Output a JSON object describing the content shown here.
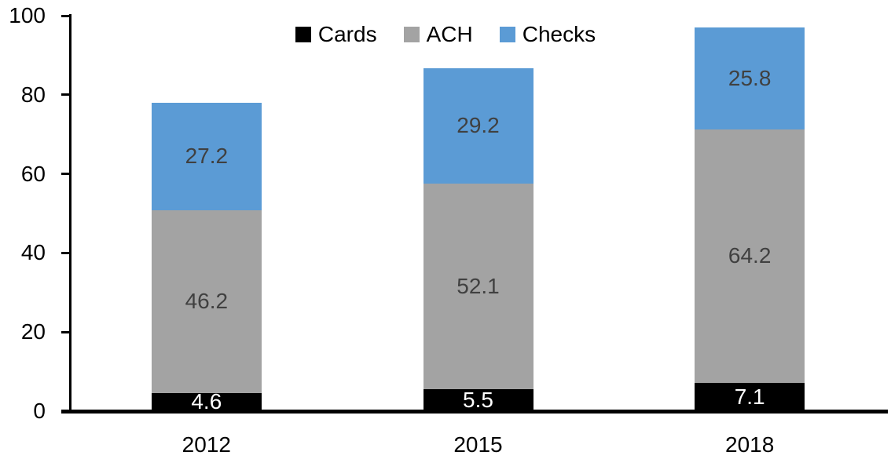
{
  "chart_data": {
    "type": "bar",
    "stacked": true,
    "title": "",
    "xlabel": "",
    "ylabel": "",
    "categories": [
      "2012",
      "2015",
      "2018"
    ],
    "series": [
      {
        "name": "Cards",
        "color": "#000000",
        "label_color": "#FFFFFF",
        "values": [
          4.6,
          5.5,
          7.1
        ]
      },
      {
        "name": "ACH",
        "color": "#A3A3A3",
        "label_color": "#404040",
        "values": [
          46.2,
          52.1,
          64.2
        ]
      },
      {
        "name": "Checks",
        "color": "#5B9BD5",
        "label_color": "#404040",
        "values": [
          27.2,
          29.2,
          25.8
        ]
      }
    ],
    "y_axis": {
      "min": 0,
      "max": 100,
      "ticks": [
        0,
        20,
        40,
        60,
        80,
        100
      ]
    },
    "legend": {
      "position": "top",
      "entries": [
        "Cards",
        "ACH",
        "Checks"
      ]
    },
    "grid": false,
    "data_labels": true,
    "axis_color": "#000000",
    "background": "#FFFFFF"
  }
}
